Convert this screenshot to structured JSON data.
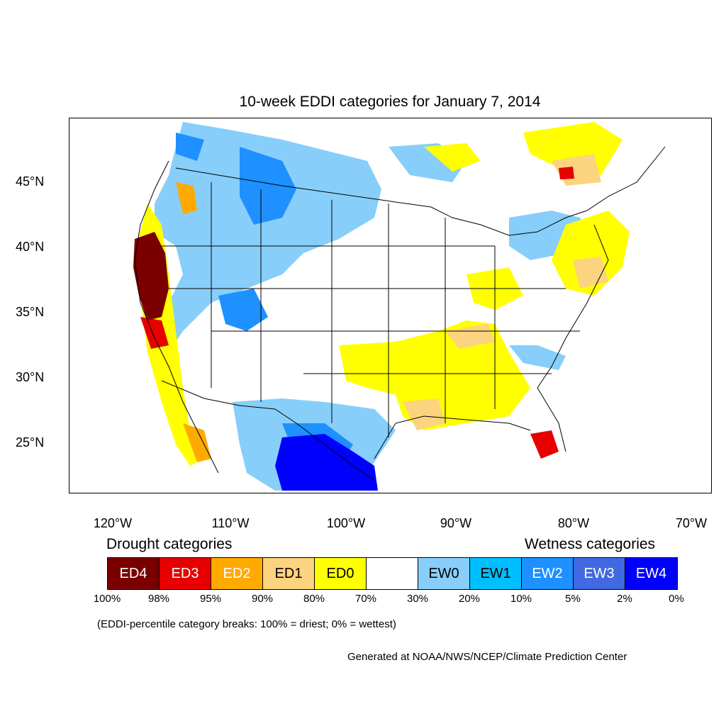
{
  "title": "10-week EDDI categories for January 7, 2014",
  "lat_labels": [
    "45°N",
    "40°N",
    "35°N",
    "30°N",
    "25°N"
  ],
  "lon_labels": [
    "120°W",
    "110°W",
    "100°W",
    "90°W",
    "80°W",
    "70°W"
  ],
  "drought_heading": "Drought categories",
  "wetness_heading": "Wetness categories",
  "legend": [
    {
      "label": "ED4",
      "color": "#7a0000",
      "text_color": "#ffffff"
    },
    {
      "label": "ED3",
      "color": "#e60000",
      "text_color": "#ffffff"
    },
    {
      "label": "ED2",
      "color": "#ffaa00",
      "text_color": "#ffffff"
    },
    {
      "label": "ED1",
      "color": "#fcd37f",
      "text_color": "#000000"
    },
    {
      "label": "ED0",
      "color": "#ffff00",
      "text_color": "#000000"
    },
    {
      "label": "",
      "color": "#ffffff",
      "text_color": "#000000"
    },
    {
      "label": "EW0",
      "color": "#87cefa",
      "text_color": "#000000"
    },
    {
      "label": "EW1",
      "color": "#00bfff",
      "text_color": "#000000"
    },
    {
      "label": "EW2",
      "color": "#1e90ff",
      "text_color": "#ffffff"
    },
    {
      "label": "EW3",
      "color": "#4169e1",
      "text_color": "#ffffff"
    },
    {
      "label": "EW4",
      "color": "#0000ff",
      "text_color": "#ffffff"
    }
  ],
  "percent_breaks": [
    "100%",
    "98%",
    "95%",
    "90%",
    "80%",
    "70%",
    "30%",
    "20%",
    "10%",
    "5%",
    "2%",
    "0%"
  ],
  "note": "(EDDI-percentile category breaks: 100% = driest; 0% = wettest)",
  "credit": "Generated at NOAA/NWS/NCEP/Climate Prediction Center"
}
